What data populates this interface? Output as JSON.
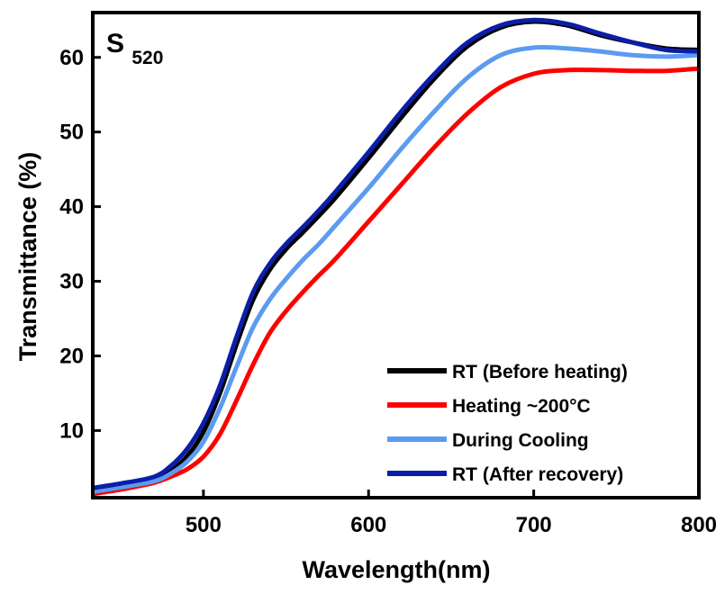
{
  "chart_data": {
    "type": "line",
    "panel_label": {
      "main": "S",
      "subscript": "520"
    },
    "xlabel": "Wavelength(nm)",
    "ylabel": "Transmittance (%)",
    "xlim": [
      433,
      800
    ],
    "ylim": [
      1,
      66
    ],
    "x_ticks": [
      500,
      600,
      700,
      800
    ],
    "y_ticks": [
      10,
      20,
      30,
      40,
      50,
      60
    ],
    "grid": false,
    "legend_position": "bottom-right",
    "series": [
      {
        "name": "RT (Before heating)",
        "color": "#000000",
        "x": [
          433,
          450,
          470,
          480,
          490,
          500,
          510,
          520,
          530,
          540,
          550,
          560,
          570,
          580,
          600,
          620,
          640,
          660,
          680,
          700,
          720,
          740,
          760,
          780,
          800
        ],
        "y": [
          2.0,
          2.5,
          3.3,
          4.5,
          6.5,
          9.8,
          15.0,
          21.5,
          27.5,
          31.5,
          34.3,
          36.5,
          38.8,
          41.2,
          46.5,
          52.0,
          57.2,
          61.5,
          64.0,
          64.8,
          64.3,
          63.0,
          62.0,
          61.2,
          61.0
        ]
      },
      {
        "name": "Heating ~200°C",
        "color": "#ff0000",
        "x": [
          433,
          450,
          470,
          480,
          490,
          500,
          510,
          520,
          530,
          540,
          550,
          560,
          570,
          580,
          600,
          620,
          640,
          660,
          680,
          700,
          720,
          740,
          760,
          780,
          800
        ],
        "y": [
          1.5,
          2.1,
          3.0,
          3.8,
          4.8,
          6.5,
          9.5,
          14.0,
          18.8,
          23.0,
          26.0,
          28.5,
          30.8,
          33.0,
          38.0,
          43.0,
          48.0,
          52.5,
          56.0,
          57.8,
          58.3,
          58.3,
          58.2,
          58.2,
          58.5
        ]
      },
      {
        "name": "During Cooling",
        "color": "#5b9bf0",
        "x": [
          433,
          450,
          470,
          480,
          490,
          500,
          510,
          520,
          530,
          540,
          550,
          560,
          570,
          580,
          600,
          620,
          640,
          660,
          680,
          700,
          720,
          740,
          760,
          780,
          800
        ],
        "y": [
          1.8,
          2.4,
          3.2,
          4.2,
          5.8,
          8.5,
          13.0,
          18.5,
          23.8,
          27.5,
          30.3,
          32.8,
          35.0,
          37.5,
          42.5,
          47.8,
          52.8,
          57.3,
          60.3,
          61.3,
          61.2,
          60.8,
          60.3,
          60.1,
          60.3
        ]
      },
      {
        "name": "RT (After recovery)",
        "color": "#0b1ea8",
        "x": [
          433,
          450,
          470,
          480,
          490,
          500,
          510,
          520,
          530,
          540,
          550,
          560,
          570,
          580,
          600,
          620,
          640,
          660,
          680,
          700,
          720,
          740,
          760,
          780,
          800
        ],
        "y": [
          2.3,
          2.9,
          3.8,
          5.2,
          7.5,
          11.0,
          16.0,
          22.5,
          28.5,
          32.3,
          35.0,
          37.2,
          39.5,
          42.0,
          47.3,
          52.8,
          57.8,
          62.0,
          64.3,
          65.0,
          64.5,
          63.2,
          62.0,
          61.0,
          60.8
        ]
      }
    ]
  }
}
